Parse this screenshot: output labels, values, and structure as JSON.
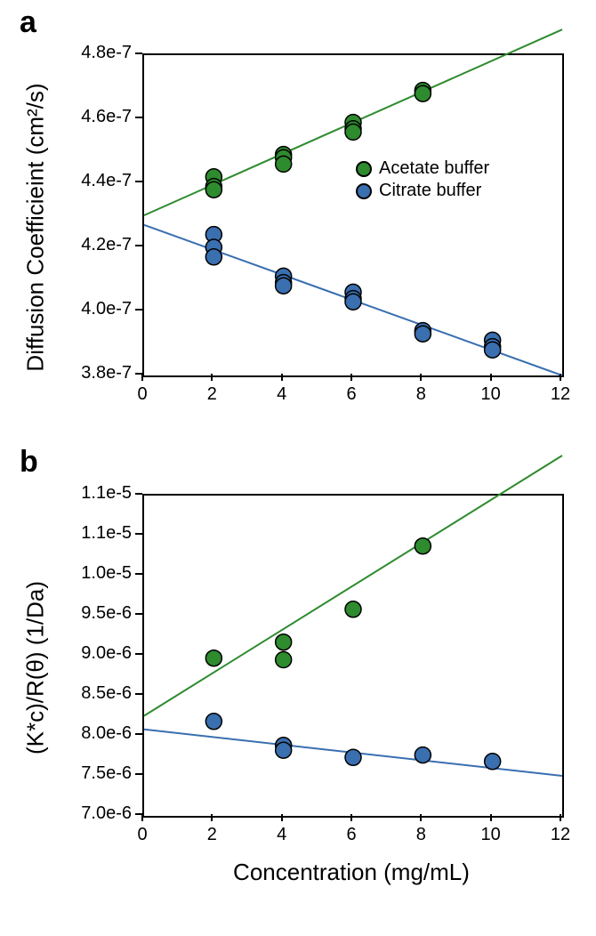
{
  "panel_a": {
    "label": "a",
    "label_fontsize": 34,
    "label_fontweight": "bold",
    "ylabel": "Diffusion Coefficieint (cm²/s)",
    "ylabel_fontsize": 26,
    "xlim": [
      0,
      12
    ],
    "ylim": [
      3.8e-07,
      4.8e-07
    ],
    "xtick_positions": [
      0,
      2,
      4,
      6,
      8,
      10,
      12
    ],
    "xtick_labels": [
      "0",
      "2",
      "4",
      "6",
      "8",
      "10",
      "12"
    ],
    "ytick_positions": [
      3.8e-07,
      4e-07,
      4.2e-07,
      4.4e-07,
      4.6e-07,
      4.8e-07
    ],
    "ytick_labels": [
      "3.8e-7",
      "4.0e-7",
      "4.2e-7",
      "4.4e-7",
      "4.6e-7",
      "4.8e-7"
    ],
    "tick_fontsize": 20,
    "background_color": "#ffffff",
    "axis_color": "#000000",
    "series": [
      {
        "name": "Acetate buffer",
        "marker_color": "#2e8b2e",
        "marker_edge_color": "#000000",
        "marker_size": 9,
        "line_color": "#2e8b2e",
        "line_width": 2,
        "line_y0": 4.3e-07,
        "line_y12": 4.88e-07,
        "points": [
          {
            "x": 2,
            "y": 4.42e-07
          },
          {
            "x": 2,
            "y": 4.39e-07
          },
          {
            "x": 2,
            "y": 4.38e-07
          },
          {
            "x": 4,
            "y": 4.49e-07
          },
          {
            "x": 4,
            "y": 4.48e-07
          },
          {
            "x": 4,
            "y": 4.46e-07
          },
          {
            "x": 6,
            "y": 4.59e-07
          },
          {
            "x": 6,
            "y": 4.57e-07
          },
          {
            "x": 6,
            "y": 4.56e-07
          },
          {
            "x": 8,
            "y": 4.69e-07
          },
          {
            "x": 8,
            "y": 4.68e-07
          }
        ]
      },
      {
        "name": "Citrate buffer",
        "marker_color": "#3a6fb0",
        "marker_edge_color": "#000000",
        "marker_size": 9,
        "line_color": "#3a6fb0",
        "line_width": 2,
        "line_y0": 4.27e-07,
        "line_y12": 3.8e-07,
        "points": [
          {
            "x": 2,
            "y": 4.24e-07
          },
          {
            "x": 2,
            "y": 4.2e-07
          },
          {
            "x": 2,
            "y": 4.17e-07
          },
          {
            "x": 4,
            "y": 4.11e-07
          },
          {
            "x": 4,
            "y": 4.09e-07
          },
          {
            "x": 4,
            "y": 4.08e-07
          },
          {
            "x": 6,
            "y": 4.06e-07
          },
          {
            "x": 6,
            "y": 4.04e-07
          },
          {
            "x": 6,
            "y": 4.03e-07
          },
          {
            "x": 8,
            "y": 3.94e-07
          },
          {
            "x": 8,
            "y": 3.93e-07
          },
          {
            "x": 10,
            "y": 3.91e-07
          },
          {
            "x": 10,
            "y": 3.89e-07
          },
          {
            "x": 10,
            "y": 3.88e-07
          }
        ]
      }
    ],
    "legend": {
      "items": [
        {
          "label": "Acetate buffer",
          "color": "#2e8b2e"
        },
        {
          "label": "Citrate buffer",
          "color": "#3a6fb0"
        }
      ],
      "fontsize": 20
    }
  },
  "panel_b": {
    "label": "b",
    "label_fontsize": 34,
    "label_fontweight": "bold",
    "ylabel": "(K*c)/R(θ) (1/Da)",
    "ylabel_fontsize": 26,
    "xlabel": "Concentration (mg/mL)",
    "xlabel_fontsize": 26,
    "xlim": [
      0,
      12
    ],
    "ylim": [
      7e-06,
      1.1e-05
    ],
    "xtick_positions": [
      0,
      2,
      4,
      6,
      8,
      10,
      12
    ],
    "xtick_labels": [
      "0",
      "2",
      "4",
      "6",
      "8",
      "10",
      "12"
    ],
    "ytick_positions": [
      7e-06,
      7.5e-06,
      8e-06,
      8.5e-06,
      9e-06,
      9.5e-06,
      1e-05,
      1.05e-05,
      1.1e-05
    ],
    "ytick_labels": [
      "7.0e-6",
      "7.5e-6",
      "8.0e-6",
      "8.5e-6",
      "9.0e-6",
      "9.5e-6",
      "1.0e-5",
      "1.1e-5",
      "1.1e-5"
    ],
    "tick_fontsize": 20,
    "background_color": "#ffffff",
    "axis_color": "#000000",
    "series": [
      {
        "name": "Acetate buffer",
        "marker_color": "#2e8b2e",
        "marker_edge_color": "#000000",
        "marker_size": 9,
        "line_color": "#2e8b2e",
        "line_width": 2,
        "line_y0": 8.25e-06,
        "line_y12": 1.15e-05,
        "points": [
          {
            "x": 2,
            "y": 8.97e-06
          },
          {
            "x": 4,
            "y": 9.17e-06
          },
          {
            "x": 4,
            "y": 8.95e-06
          },
          {
            "x": 6,
            "y": 9.58e-06
          },
          {
            "x": 8,
            "y": 1.037e-05
          }
        ]
      },
      {
        "name": "Citrate buffer",
        "marker_color": "#3a6fb0",
        "marker_edge_color": "#000000",
        "marker_size": 9,
        "line_color": "#3a6fb0",
        "line_width": 2,
        "line_y0": 8.08e-06,
        "line_y12": 7.5e-06,
        "points": [
          {
            "x": 2,
            "y": 8.18e-06
          },
          {
            "x": 4,
            "y": 7.88e-06
          },
          {
            "x": 4,
            "y": 7.82e-06
          },
          {
            "x": 6,
            "y": 7.73e-06
          },
          {
            "x": 8,
            "y": 7.76e-06
          },
          {
            "x": 10,
            "y": 7.68e-06
          }
        ]
      }
    ]
  }
}
